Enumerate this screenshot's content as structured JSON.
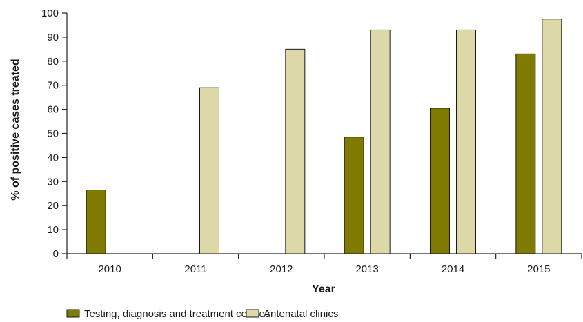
{
  "chart_data": {
    "type": "bar",
    "title": "",
    "xlabel": "Year",
    "ylabel": "% of positive cases treated",
    "ylim": [
      0,
      100
    ],
    "yticks": [
      0,
      10,
      20,
      30,
      40,
      50,
      60,
      70,
      80,
      90,
      100
    ],
    "categories": [
      "2010",
      "2011",
      "2012",
      "2013",
      "2014",
      "2015"
    ],
    "series": [
      {
        "name": "Testing, diagnosis and treatment centres",
        "color": "#7f7a00",
        "values": [
          26.5,
          null,
          null,
          48.5,
          60.5,
          83
        ]
      },
      {
        "name": "Antenatal clinics",
        "color": "#ddd8a8",
        "values": [
          null,
          69,
          85,
          93,
          93,
          97.5
        ]
      }
    ],
    "legend_position": "bottom-left",
    "grid": false
  }
}
